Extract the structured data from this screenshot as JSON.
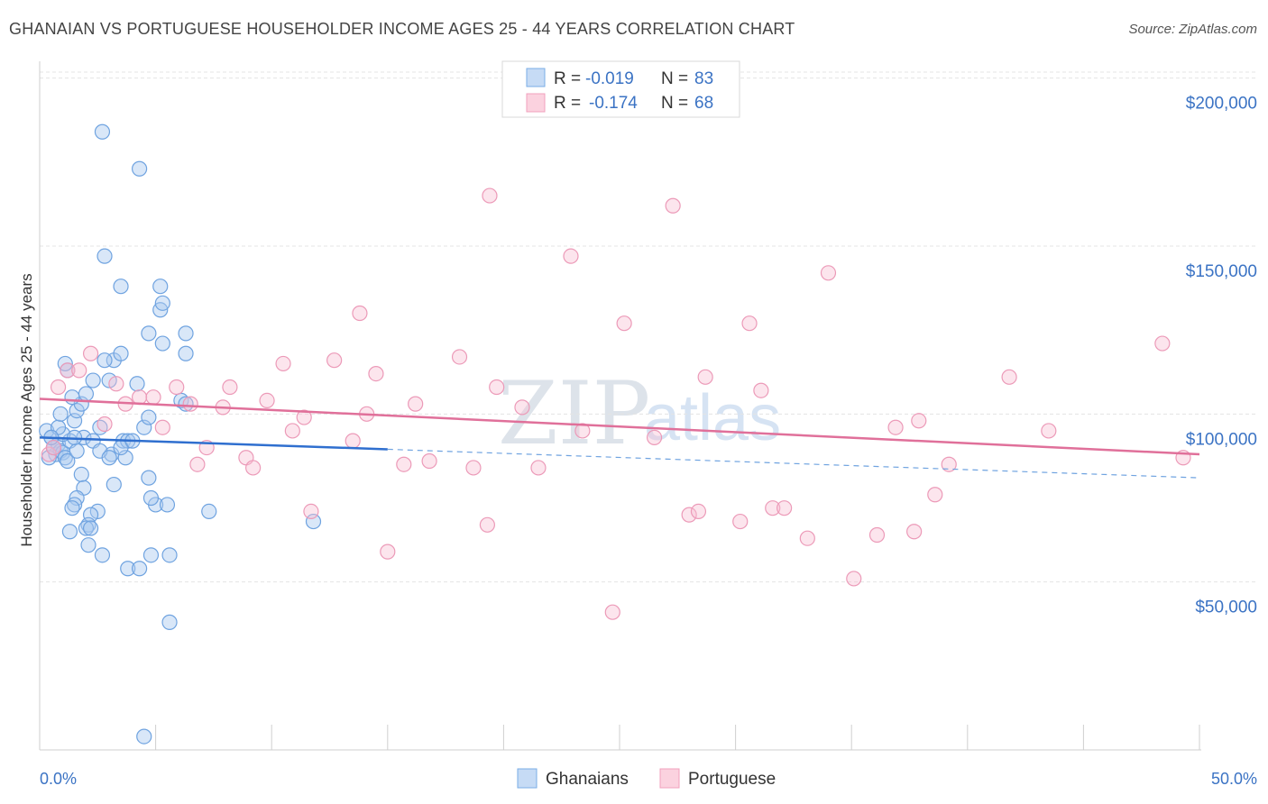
{
  "title": "GHANAIAN VS PORTUGUESE HOUSEHOLDER INCOME AGES 25 - 44 YEARS CORRELATION CHART",
  "source": "Source: ZipAtlas.com",
  "watermark": {
    "zip": "ZIP",
    "atlas": "atlas"
  },
  "legend": {
    "r_label": "R =",
    "n_label": "N =",
    "rows": [
      {
        "r": "-0.019",
        "n": "83",
        "color": "#7aaee6"
      },
      {
        "r": "-0.174",
        "n": "68",
        "color": "#f0a0bc"
      }
    ]
  },
  "bottom_legend": [
    {
      "label": "Ghanaians",
      "color": "#7aaee6"
    },
    {
      "label": "Portuguese",
      "color": "#f0a0bc"
    }
  ],
  "chart_data": {
    "type": "scatter",
    "title": "GHANAIAN VS PORTUGUESE HOUSEHOLDER INCOME AGES 25 - 44 YEARS CORRELATION CHART",
    "xlabel": "",
    "ylabel": "Householder Income Ages 25 - 44 years",
    "xlim": [
      0,
      50
    ],
    "ylim": [
      0,
      205000
    ],
    "x_tick_labels": [
      "0.0%",
      "50.0%"
    ],
    "y_ticks": [
      50000,
      100000,
      150000,
      200000
    ],
    "y_tick_labels": [
      "$50,000",
      "$100,000",
      "$150,000",
      "$200,000"
    ],
    "grid": true,
    "series": [
      {
        "name": "Ghanaians",
        "color": "#6fa3e0",
        "trend": {
          "x0": 0,
          "y0": 93000,
          "x1": 15,
          "y1": 89500,
          "dash_to_x": 50,
          "dash_to_y": 81000
        },
        "points": [
          [
            0.3,
            95000
          ],
          [
            0.5,
            93000
          ],
          [
            0.6,
            90000
          ],
          [
            0.7,
            88000
          ],
          [
            0.8,
            91000
          ],
          [
            0.9,
            89000
          ],
          [
            1.0,
            88500
          ],
          [
            1.1,
            87000
          ],
          [
            1.2,
            86000
          ],
          [
            1.3,
            92000
          ],
          [
            1.0,
            94000
          ],
          [
            0.4,
            87000
          ],
          [
            0.8,
            96000
          ],
          [
            1.5,
            98000
          ],
          [
            1.6,
            101000
          ],
          [
            1.8,
            103000
          ],
          [
            2.0,
            106000
          ],
          [
            1.4,
            105000
          ],
          [
            2.3,
            110000
          ],
          [
            3.0,
            110000
          ],
          [
            1.2,
            113000
          ],
          [
            1.1,
            115000
          ],
          [
            3.2,
            116000
          ],
          [
            3.5,
            118000
          ],
          [
            2.8,
            116000
          ],
          [
            2.6,
            96000
          ],
          [
            1.9,
            93000
          ],
          [
            2.3,
            92000
          ],
          [
            3.1,
            88000
          ],
          [
            3.7,
            87000
          ],
          [
            3.6,
            92000
          ],
          [
            3.8,
            92000
          ],
          [
            3.5,
            90000
          ],
          [
            1.8,
            82000
          ],
          [
            3.2,
            79000
          ],
          [
            1.9,
            78000
          ],
          [
            1.6,
            75000
          ],
          [
            1.5,
            73000
          ],
          [
            1.4,
            72000
          ],
          [
            2.5,
            71000
          ],
          [
            2.2,
            70000
          ],
          [
            2.1,
            67000
          ],
          [
            2.0,
            66000
          ],
          [
            2.2,
            66000
          ],
          [
            1.3,
            65000
          ],
          [
            2.1,
            61000
          ],
          [
            2.7,
            58000
          ],
          [
            3.8,
            54000
          ],
          [
            4.3,
            54000
          ],
          [
            4.8,
            58000
          ],
          [
            5.6,
            58000
          ],
          [
            5.0,
            73000
          ],
          [
            5.5,
            73000
          ],
          [
            4.8,
            75000
          ],
          [
            4.7,
            81000
          ],
          [
            4.5,
            96000
          ],
          [
            4.7,
            99000
          ],
          [
            4.2,
            109000
          ],
          [
            6.1,
            104000
          ],
          [
            6.3,
            103000
          ],
          [
            6.3,
            118000
          ],
          [
            6.3,
            124000
          ],
          [
            4.7,
            124000
          ],
          [
            5.3,
            121000
          ],
          [
            5.2,
            131000
          ],
          [
            5.3,
            133000
          ],
          [
            5.2,
            138000
          ],
          [
            3.5,
            138000
          ],
          [
            2.8,
            147000
          ],
          [
            4.3,
            173000
          ],
          [
            2.7,
            184000
          ],
          [
            7.3,
            71000
          ],
          [
            11.8,
            68000
          ],
          [
            5.6,
            38000
          ],
          [
            4.5,
            4000
          ],
          [
            0.9,
            100000
          ],
          [
            1.6,
            89000
          ],
          [
            2.6,
            89000
          ],
          [
            1.5,
            93000
          ],
          [
            0.6,
            90000
          ],
          [
            3.0,
            87000
          ],
          [
            4.0,
            92000
          ],
          [
            0.5,
            93000
          ]
        ]
      },
      {
        "name": "Portuguese",
        "color": "#ec8fb0",
        "trend": {
          "x0": 0,
          "y0": 104500,
          "x1": 50,
          "y1": 88000
        },
        "points": [
          [
            0.4,
            88000
          ],
          [
            0.6,
            90000
          ],
          [
            0.8,
            108000
          ],
          [
            1.2,
            113000
          ],
          [
            1.7,
            113000
          ],
          [
            2.2,
            118000
          ],
          [
            2.8,
            97000
          ],
          [
            3.3,
            109000
          ],
          [
            3.7,
            103000
          ],
          [
            4.3,
            105000
          ],
          [
            4.9,
            105000
          ],
          [
            5.3,
            96000
          ],
          [
            5.9,
            108000
          ],
          [
            6.5,
            103000
          ],
          [
            6.8,
            85000
          ],
          [
            7.2,
            90000
          ],
          [
            7.9,
            102000
          ],
          [
            8.2,
            108000
          ],
          [
            8.9,
            87000
          ],
          [
            9.2,
            84000
          ],
          [
            9.8,
            104000
          ],
          [
            10.5,
            115000
          ],
          [
            10.9,
            95000
          ],
          [
            11.4,
            99000
          ],
          [
            11.7,
            71000
          ],
          [
            12.7,
            116000
          ],
          [
            13.5,
            92000
          ],
          [
            13.8,
            130000
          ],
          [
            14.1,
            100000
          ],
          [
            14.5,
            112000
          ],
          [
            15.0,
            59000
          ],
          [
            15.7,
            85000
          ],
          [
            16.2,
            103000
          ],
          [
            16.8,
            86000
          ],
          [
            18.1,
            117000
          ],
          [
            18.7,
            84000
          ],
          [
            19.3,
            67000
          ],
          [
            19.4,
            165000
          ],
          [
            19.7,
            108000
          ],
          [
            20.8,
            102000
          ],
          [
            21.5,
            84000
          ],
          [
            22.9,
            147000
          ],
          [
            23.4,
            95000
          ],
          [
            24.7,
            41000
          ],
          [
            25.2,
            127000
          ],
          [
            26.5,
            93000
          ],
          [
            27.3,
            162000
          ],
          [
            28.0,
            70000
          ],
          [
            28.4,
            71000
          ],
          [
            28.7,
            111000
          ],
          [
            30.2,
            68000
          ],
          [
            30.6,
            127000
          ],
          [
            31.1,
            107000
          ],
          [
            31.6,
            72000
          ],
          [
            32.1,
            72000
          ],
          [
            33.1,
            63000
          ],
          [
            34.0,
            142000
          ],
          [
            35.1,
            51000
          ],
          [
            36.1,
            64000
          ],
          [
            36.9,
            96000
          ],
          [
            37.7,
            65000
          ],
          [
            37.9,
            98000
          ],
          [
            38.6,
            76000
          ],
          [
            39.2,
            85000
          ],
          [
            41.8,
            111000
          ],
          [
            43.5,
            95000
          ],
          [
            48.4,
            121000
          ],
          [
            49.3,
            87000
          ]
        ]
      }
    ]
  }
}
